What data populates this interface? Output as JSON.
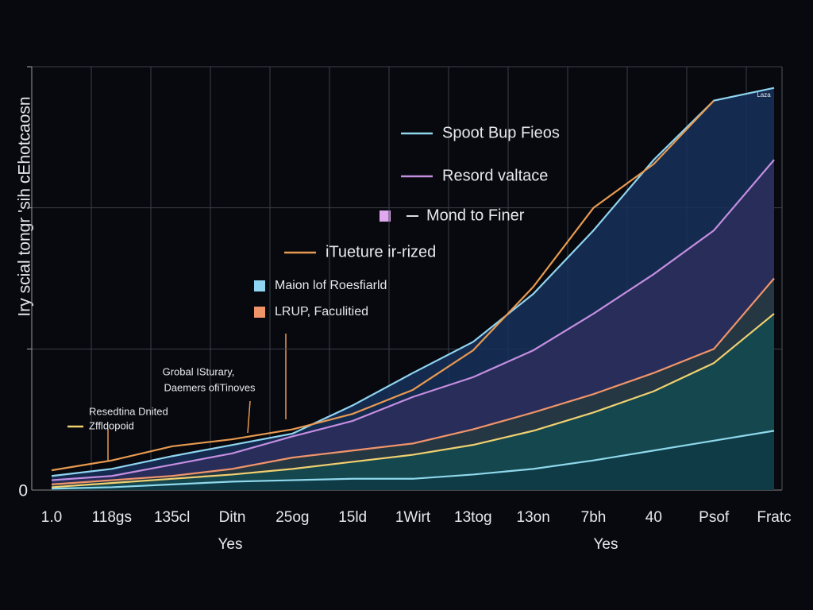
{
  "chart_data": {
    "type": "area",
    "y_title": "Iry scial tongr 'sih cEhotcaosn",
    "x_titles": [
      "Yes",
      "Yes"
    ],
    "categories": [
      "1.0",
      "118gs",
      "135cl",
      "Ditn",
      "25og",
      "15ld",
      "1Wirt",
      "13tog",
      "13on",
      "7bh",
      "40",
      "Psof",
      "Fratc"
    ],
    "ylim": [
      0,
      3
    ],
    "yticks": [
      0
    ],
    "ygrid": [
      1,
      2,
      3
    ],
    "grid": true,
    "series": [
      {
        "name": "Maion lof Roesfiarld",
        "color": "#8fd4f0",
        "fill": "#17305a",
        "values": [
          0.1,
          0.15,
          0.24,
          0.32,
          0.4,
          0.6,
          0.83,
          1.05,
          1.39,
          1.84,
          2.34,
          2.76,
          2.85
        ]
      },
      {
        "name": "Resord valtace",
        "color": "#c48ee0",
        "fill": "#2c2e5c",
        "values": [
          0.07,
          0.1,
          0.18,
          0.26,
          0.38,
          0.49,
          0.66,
          0.8,
          0.99,
          1.25,
          1.53,
          1.84,
          2.34
        ]
      },
      {
        "name": "LRUP, Faculitied",
        "color": "#f0946a",
        "fill": "#243a3e",
        "values": [
          0.04,
          0.07,
          0.1,
          0.15,
          0.23,
          0.28,
          0.33,
          0.43,
          0.55,
          0.68,
          0.83,
          1.0,
          1.5
        ]
      },
      {
        "name": "Zffldopoid",
        "color": "#f0d070",
        "fill": "#134a50",
        "values": [
          0.02,
          0.05,
          0.08,
          0.11,
          0.15,
          0.2,
          0.25,
          0.32,
          0.42,
          0.55,
          0.7,
          0.9,
          1.25
        ]
      },
      {
        "name": "Spoot Bup Fieos",
        "color": "#8fd8ec",
        "fill": "#0d3a45",
        "values": [
          0.01,
          0.02,
          0.04,
          0.06,
          0.07,
          0.08,
          0.08,
          0.11,
          0.15,
          0.21,
          0.28,
          0.35,
          0.42
        ]
      },
      {
        "name": "iTueture ir-rized",
        "color": "#e89a50",
        "values": [
          0.14,
          0.21,
          0.31,
          0.36,
          0.43,
          0.54,
          0.71,
          0.99,
          1.44,
          2.0,
          2.31,
          2.76,
          null
        ]
      }
    ],
    "annotations": [
      "Mond to Finer",
      "Grobal ISturary,",
      "Daemers ofiTinoves",
      "Resedtina Dnited",
      "Laza"
    ]
  }
}
